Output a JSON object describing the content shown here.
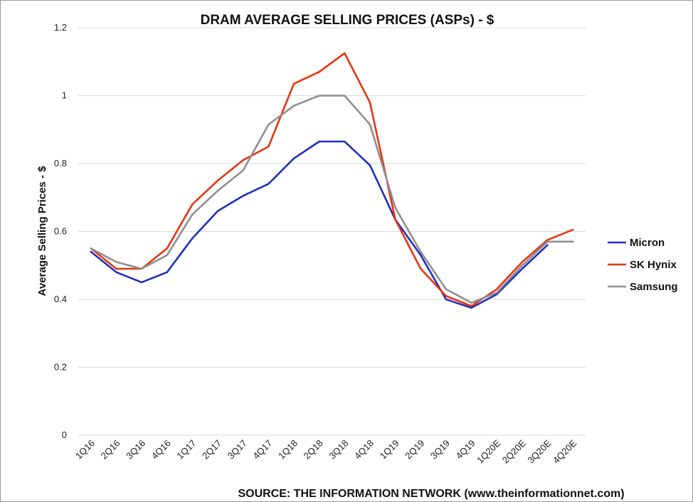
{
  "chart_data": {
    "type": "line",
    "title": "DRAM AVERAGE SELLING PRICES (ASPs) - $",
    "ylabel": "Average Selling Prices - $",
    "xlabel": "",
    "source": "SOURCE: THE INFORMATION NETWORK (www.theinformationnet.com)",
    "ylim": [
      0,
      1.2
    ],
    "yticks": [
      "0",
      "0.2",
      "0.4",
      "0.6",
      "0.8",
      "1",
      "1.2"
    ],
    "grid": true,
    "legend_position": "right",
    "categories": [
      "1Q16",
      "2Q16",
      "3Q16",
      "4Q16",
      "1Q17",
      "2Q17",
      "3Q17",
      "4Q17",
      "1Q18",
      "2Q18",
      "3Q18",
      "4Q18",
      "1Q19",
      "2Q19",
      "3Q19",
      "4Q19",
      "1Q20E",
      "2Q20E",
      "3Q20E",
      "4Q20E"
    ],
    "series": [
      {
        "name": "Micron",
        "color": "#1f2fbf",
        "values": [
          0.54,
          0.48,
          0.45,
          0.48,
          0.58,
          0.66,
          0.705,
          0.74,
          0.815,
          0.865,
          0.865,
          0.795,
          0.635,
          0.53,
          0.4,
          0.375,
          0.415,
          0.49,
          0.56,
          null
        ]
      },
      {
        "name": "SK Hynix",
        "color": "#e8340f",
        "values": [
          0.55,
          0.49,
          0.49,
          0.55,
          0.68,
          0.75,
          0.81,
          0.85,
          1.035,
          1.07,
          1.125,
          0.98,
          0.635,
          0.49,
          0.41,
          0.38,
          0.43,
          0.51,
          0.575,
          0.605
        ]
      },
      {
        "name": "Samsung",
        "color": "#8f8f8f",
        "values": [
          0.55,
          0.51,
          0.49,
          0.53,
          0.65,
          0.72,
          0.78,
          0.915,
          0.97,
          1.0,
          1.0,
          0.915,
          0.67,
          0.54,
          0.43,
          0.39,
          0.42,
          0.5,
          0.57,
          0.57
        ]
      }
    ]
  }
}
